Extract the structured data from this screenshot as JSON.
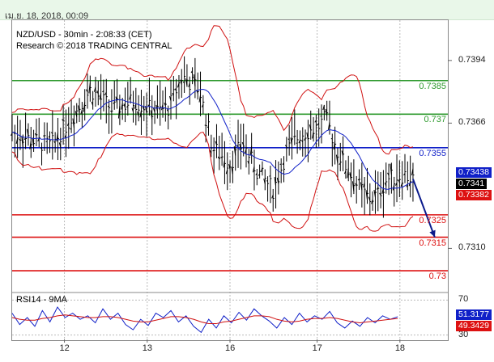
{
  "timestamp": "เม.ย. 18, 2018, 00:09",
  "chart_data": {
    "type": "candlestick",
    "title": "NZD/USD - 30min - 2:08:33 (CET)",
    "subtitle": "Research © 2018 TRADING CENTRAL",
    "x_ticks": [
      "12",
      "13",
      "16",
      "17",
      "18"
    ],
    "y_ticks": [
      "0.7394",
      "0.7366",
      "0.7310"
    ],
    "ylim": [
      0.7291,
      0.7412
    ],
    "levels": [
      {
        "value": 0.7385,
        "label": "0.7385",
        "color": "#2e9a2e"
      },
      {
        "value": 0.737,
        "label": "0.737",
        "color": "#2e9a2e"
      },
      {
        "value": 0.7355,
        "label": "0.7355",
        "color": "#1020c8"
      },
      {
        "value": 0.7325,
        "label": "0.7325",
        "color": "#dd1111"
      },
      {
        "value": 0.7315,
        "label": "0.7315",
        "color": "#dd1111"
      },
      {
        "value": 0.73,
        "label": "0.73",
        "color": "#dd1111"
      }
    ],
    "price_badges": [
      {
        "label": "0.73438",
        "bg": "#1020c8",
        "fg": "#ffffff"
      },
      {
        "label": "0.7341",
        "bg": "#000000",
        "fg": "#ffffff"
      },
      {
        "label": "0.73382",
        "bg": "#dd1111",
        "fg": "#ffffff"
      }
    ],
    "close_path": [
      [
        0,
        0.7362
      ],
      [
        0.05,
        0.7358
      ],
      [
        0.09,
        0.7356
      ],
      [
        0.15,
        0.7372
      ],
      [
        0.18,
        0.7381
      ],
      [
        0.23,
        0.7372
      ],
      [
        0.28,
        0.7376
      ],
      [
        0.33,
        0.7371
      ],
      [
        0.36,
        0.7373
      ],
      [
        0.39,
        0.7387
      ],
      [
        0.43,
        0.7381
      ],
      [
        0.46,
        0.7355
      ],
      [
        0.5,
        0.7348
      ],
      [
        0.53,
        0.7357
      ],
      [
        0.56,
        0.7345
      ],
      [
        0.6,
        0.7336
      ],
      [
        0.63,
        0.7353
      ],
      [
        0.66,
        0.7361
      ],
      [
        0.7,
        0.7364
      ],
      [
        0.72,
        0.7368
      ],
      [
        0.75,
        0.7352
      ],
      [
        0.79,
        0.7339
      ],
      [
        0.82,
        0.7332
      ],
      [
        0.84,
        0.7334
      ],
      [
        0.86,
        0.7341
      ],
      [
        0.9,
        0.7343
      ],
      [
        0.92,
        0.7341
      ]
    ],
    "forecast_arrow": {
      "from": [
        0.92,
        0.7341
      ],
      "to": [
        0.97,
        0.7315
      ],
      "color": "#0a1a8c"
    },
    "rsi": {
      "label": "RSI14 - 9MA",
      "ylim": [
        25,
        75
      ],
      "y_ticks": [
        "70",
        "30"
      ],
      "badges": [
        {
          "label": "51.3177",
          "bg": "#1020c8",
          "fg": "#ffffff"
        },
        {
          "label": "49.3429",
          "bg": "#dd1111",
          "fg": "#ffffff"
        }
      ],
      "rsi_values": [
        55,
        42,
        50,
        40,
        58,
        45,
        62,
        50,
        55,
        48,
        52,
        44,
        60,
        48,
        55,
        42,
        36,
        48,
        41,
        55,
        50,
        58,
        45,
        52,
        40,
        33,
        48,
        38,
        52,
        44,
        56,
        47,
        60,
        52,
        46,
        38,
        50,
        42,
        55,
        45,
        52,
        48,
        57,
        44,
        38,
        46,
        40,
        50,
        44,
        52,
        48,
        51
      ],
      "ma_values": [
        50,
        48,
        47,
        47,
        49,
        50,
        52,
        53,
        52,
        51,
        50,
        50,
        51,
        51,
        50,
        48,
        46,
        45,
        45,
        47,
        49,
        51,
        51,
        50,
        48,
        45,
        43,
        43,
        45,
        46,
        48,
        50,
        52,
        52,
        51,
        48,
        46,
        45,
        46,
        48,
        49,
        49,
        50,
        49,
        47,
        45,
        44,
        45,
        46,
        47,
        48,
        49
      ]
    }
  }
}
